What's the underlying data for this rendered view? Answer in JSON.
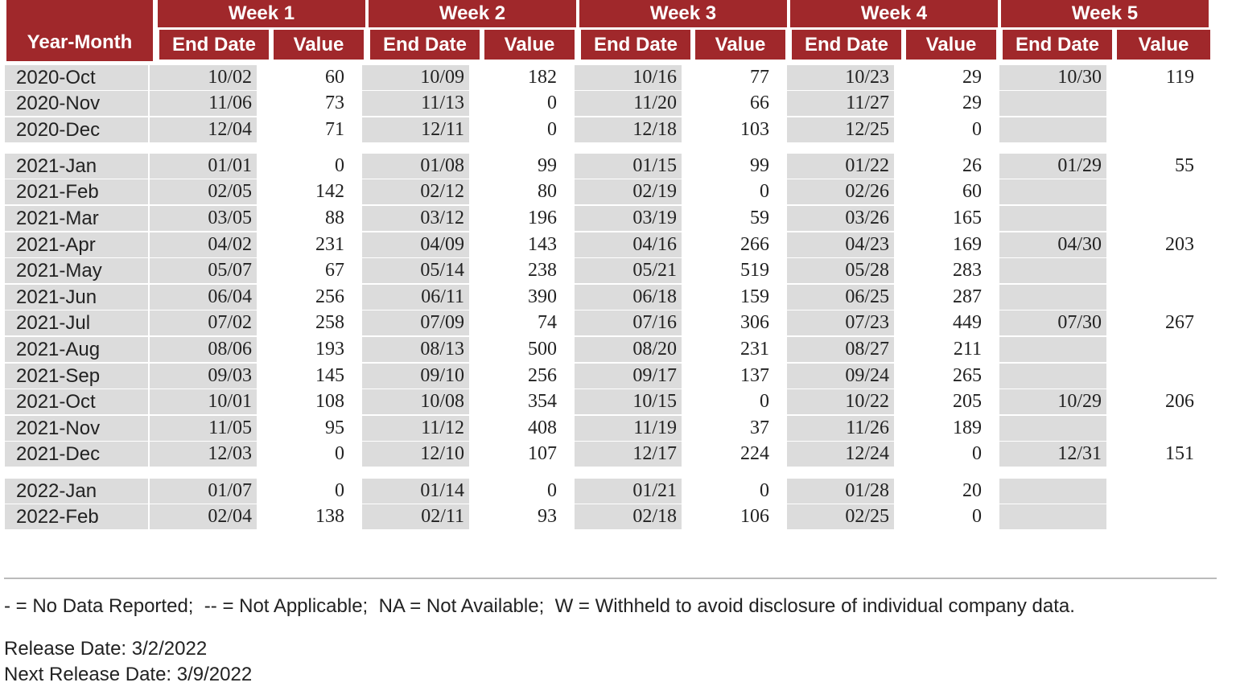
{
  "table": {
    "row_header": "Year-Month",
    "column_groups": [
      {
        "title": "Week 1",
        "columns": [
          "End Date",
          "Value"
        ]
      },
      {
        "title": "Week 2",
        "columns": [
          "End Date",
          "Value"
        ]
      },
      {
        "title": "Week 3",
        "columns": [
          "End Date",
          "Value"
        ]
      },
      {
        "title": "Week 4",
        "columns": [
          "End Date",
          "Value"
        ]
      },
      {
        "title": "Week 5",
        "columns": [
          "End Date",
          "Value"
        ]
      }
    ],
    "row_groups": [
      [
        {
          "label": "2020-Oct",
          "cells": [
            "10/02",
            60,
            "10/09",
            182,
            "10/16",
            77,
            "10/23",
            29,
            "10/30",
            119
          ]
        },
        {
          "label": "2020-Nov",
          "cells": [
            "11/06",
            73,
            "11/13",
            0,
            "11/20",
            66,
            "11/27",
            29,
            null,
            null
          ]
        },
        {
          "label": "2020-Dec",
          "cells": [
            "12/04",
            71,
            "12/11",
            0,
            "12/18",
            103,
            "12/25",
            0,
            null,
            null
          ]
        }
      ],
      [
        {
          "label": "2021-Jan",
          "cells": [
            "01/01",
            0,
            "01/08",
            99,
            "01/15",
            99,
            "01/22",
            26,
            "01/29",
            55
          ]
        },
        {
          "label": "2021-Feb",
          "cells": [
            "02/05",
            142,
            "02/12",
            80,
            "02/19",
            0,
            "02/26",
            60,
            null,
            null
          ]
        },
        {
          "label": "2021-Mar",
          "cells": [
            "03/05",
            88,
            "03/12",
            196,
            "03/19",
            59,
            "03/26",
            165,
            null,
            null
          ]
        },
        {
          "label": "2021-Apr",
          "cells": [
            "04/02",
            231,
            "04/09",
            143,
            "04/16",
            266,
            "04/23",
            169,
            "04/30",
            203
          ]
        },
        {
          "label": "2021-May",
          "cells": [
            "05/07",
            67,
            "05/14",
            238,
            "05/21",
            519,
            "05/28",
            283,
            null,
            null
          ]
        },
        {
          "label": "2021-Jun",
          "cells": [
            "06/04",
            256,
            "06/11",
            390,
            "06/18",
            159,
            "06/25",
            287,
            null,
            null
          ]
        },
        {
          "label": "2021-Jul",
          "cells": [
            "07/02",
            258,
            "07/09",
            74,
            "07/16",
            306,
            "07/23",
            449,
            "07/30",
            267
          ]
        },
        {
          "label": "2021-Aug",
          "cells": [
            "08/06",
            193,
            "08/13",
            500,
            "08/20",
            231,
            "08/27",
            211,
            null,
            null
          ]
        },
        {
          "label": "2021-Sep",
          "cells": [
            "09/03",
            145,
            "09/10",
            256,
            "09/17",
            137,
            "09/24",
            265,
            null,
            null
          ]
        },
        {
          "label": "2021-Oct",
          "cells": [
            "10/01",
            108,
            "10/08",
            354,
            "10/15",
            0,
            "10/22",
            205,
            "10/29",
            206
          ]
        },
        {
          "label": "2021-Nov",
          "cells": [
            "11/05",
            95,
            "11/12",
            408,
            "11/19",
            37,
            "11/26",
            189,
            null,
            null
          ]
        },
        {
          "label": "2021-Dec",
          "cells": [
            "12/03",
            0,
            "12/10",
            107,
            "12/17",
            224,
            "12/24",
            0,
            "12/31",
            151
          ]
        }
      ],
      [
        {
          "label": "2022-Jan",
          "cells": [
            "01/07",
            0,
            "01/14",
            0,
            "01/21",
            0,
            "01/28",
            20,
            null,
            null
          ]
        },
        {
          "label": "2022-Feb",
          "cells": [
            "02/04",
            138,
            "02/11",
            93,
            "02/18",
            106,
            "02/25",
            0,
            null,
            null
          ]
        }
      ]
    ]
  },
  "footer": {
    "legend": "- = No Data Reported;  -- = Not Applicable;  NA = Not Available;  W = Withheld to avoid disclosure of individual company data.",
    "release_date": "Release Date: 3/2/2022",
    "next_release_date": "Next Release Date: 3/9/2022"
  }
}
